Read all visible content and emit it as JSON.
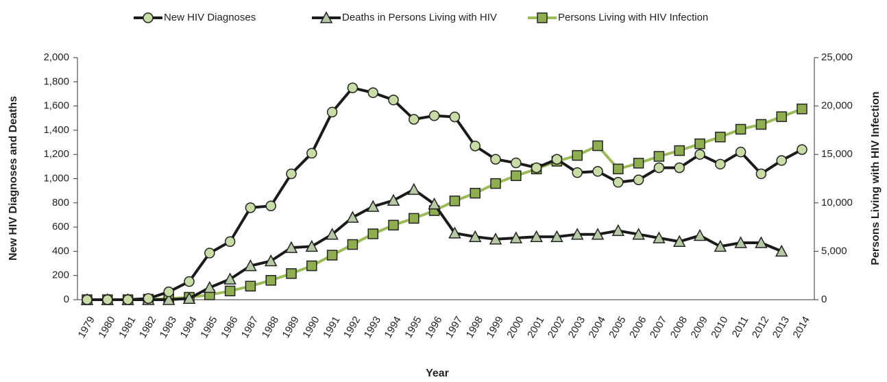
{
  "chart_data": {
    "type": "line",
    "x_label": "Year",
    "y_label": "New HIV Diagnoses and Deaths",
    "y2_label": "Persons Living with HIV Infection",
    "categories": [
      "1979",
      "1980",
      "1981",
      "1982",
      "1983",
      "1984",
      "1985",
      "1986",
      "1987",
      "1988",
      "1989",
      "1990",
      "1991",
      "1992",
      "1993",
      "1994",
      "1995",
      "1996",
      "1997",
      "1998",
      "1999",
      "2000",
      "2001",
      "2002",
      "2003",
      "2004",
      "2005",
      "2006",
      "2007",
      "2008",
      "2009",
      "2010",
      "2011",
      "2012",
      "2013",
      "2014"
    ],
    "series": [
      {
        "name": "New HIV Diagnoses",
        "color": "#1a1a1a",
        "marker": "circle",
        "marker_color": "#c9dca6",
        "values": [
          0,
          0,
          0,
          10,
          65,
          150,
          385,
          480,
          760,
          775,
          1040,
          1210,
          1550,
          1750,
          1710,
          1650,
          1490,
          1520,
          1510,
          1270,
          1160,
          1130,
          1090,
          1160,
          1050,
          1060,
          970,
          990,
          1090,
          1090,
          1200,
          1120,
          1220,
          1040,
          1150,
          1240
        ]
      },
      {
        "name": "Deaths in Persons Living with HIV",
        "color": "#1a1a1a",
        "marker": "triangle",
        "marker_color": "#b5c9a5",
        "values": [
          0,
          0,
          0,
          0,
          0,
          10,
          100,
          170,
          280,
          320,
          430,
          440,
          540,
          680,
          770,
          820,
          910,
          790,
          550,
          520,
          500,
          510,
          520,
          520,
          540,
          540,
          570,
          540,
          510,
          480,
          530,
          440,
          470,
          470,
          400,
          null
        ]
      },
      {
        "name": "Persons Living with HIV Infection",
        "color": "#9bbb59",
        "marker": "square",
        "marker_color": "#8fae4f",
        "axis": "y2",
        "values": [
          0,
          0,
          0,
          50,
          100,
          250,
          500,
          900,
          1400,
          2000,
          2700,
          3500,
          4600,
          5700,
          6800,
          7700,
          8400,
          9200,
          10200,
          11000,
          12000,
          12800,
          13500,
          14300,
          14900,
          15900,
          13500,
          14100,
          14800,
          15400,
          16100,
          16800,
          17600,
          18100,
          18900,
          19700
        ]
      }
    ],
    "ylim": [
      0,
      2000
    ],
    "yticks": [
      0,
      200,
      400,
      600,
      800,
      {
        "value": 1000,
        "label": "1,000"
      },
      {
        "value": 1200,
        "label": "1,200"
      },
      {
        "value": 1400,
        "label": "1,400"
      },
      {
        "value": 1600,
        "label": "1,600"
      },
      {
        "value": 1800,
        "label": "1,800"
      },
      {
        "value": 2000,
        "label": "2,000"
      }
    ],
    "y2lim": [
      0,
      25000
    ],
    "y2ticks": [
      0,
      {
        "value": 5000,
        "label": "5,000"
      },
      {
        "value": 10000,
        "label": "10,000"
      },
      {
        "value": 15000,
        "label": "15,000"
      },
      {
        "value": 20000,
        "label": "20,000"
      },
      {
        "value": 25000,
        "label": "25,000"
      }
    ],
    "grid": false,
    "legend": "top"
  }
}
